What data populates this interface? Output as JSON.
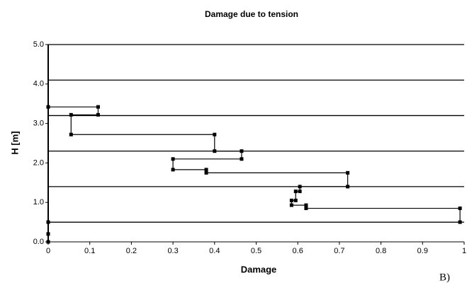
{
  "chart_data": {
    "type": "line",
    "title": "Damage due to tension",
    "x_label": "Damage",
    "y_label": "H [m]",
    "annotation": "B)",
    "x": [
      0,
      0,
      0,
      0.99,
      0.99,
      0.62,
      0.62,
      0.585,
      0.585,
      0.595,
      0.595,
      0.605,
      0.605,
      0.72,
      0.72,
      0.38,
      0.38,
      0.3,
      0.3,
      0.465,
      0.465,
      0.4,
      0.4,
      0.055,
      0.055,
      0.12,
      0.12,
      0
    ],
    "series": [
      {
        "color": "#000000",
        "values": [
          0,
          0.2,
          0.5,
          0.5,
          0.85,
          0.85,
          0.93,
          0.93,
          1.05,
          1.05,
          1.28,
          1.28,
          1.4,
          1.4,
          1.75,
          1.75,
          1.83,
          1.83,
          2.1,
          2.1,
          2.3,
          2.3,
          2.72,
          2.72,
          3.22,
          3.22,
          3.42,
          3.42
        ]
      }
    ],
    "xlim": [
      0,
      1
    ],
    "xticks": [
      0,
      0.1,
      0.2,
      0.3,
      0.4,
      0.5,
      0.6,
      0.7,
      0.8,
      0.9,
      1
    ],
    "ylim": [
      0,
      5
    ],
    "yticks": [
      {
        "value": 0,
        "label": "0.0"
      },
      {
        "value": 1,
        "label": "1.0"
      },
      {
        "value": 2,
        "label": "2.0"
      },
      {
        "value": 3,
        "label": "3.0"
      },
      {
        "value": 4,
        "label": "4.0"
      },
      {
        "value": 5,
        "label": "5.0"
      }
    ],
    "level_lines": [
      0.5,
      1.4,
      2.3,
      3.2,
      4.1,
      5.0
    ]
  }
}
